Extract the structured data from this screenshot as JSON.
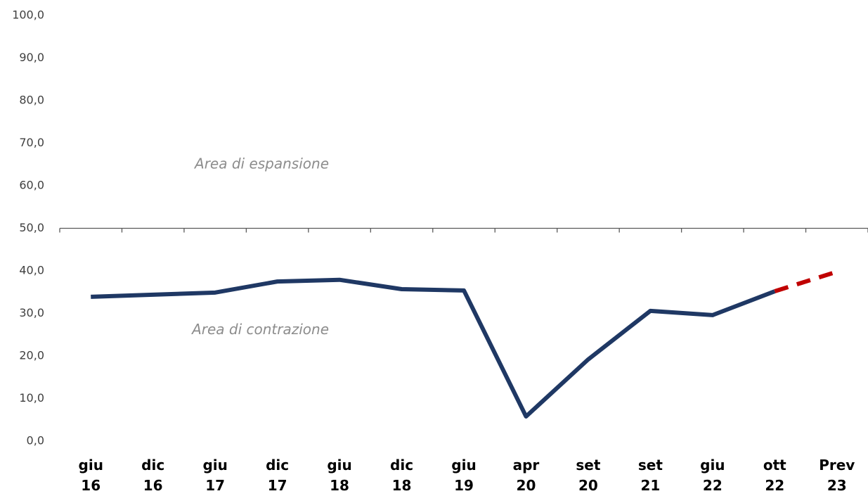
{
  "chart_data": {
    "type": "line",
    "categories": [
      "giu 16",
      "dic 16",
      "giu 17",
      "dic 17",
      "giu 18",
      "dic 18",
      "giu 19",
      "apr 20",
      "set 20",
      "set 21",
      "giu 22",
      "ott 22",
      "Prev 23"
    ],
    "series": [
      {
        "color": "#1f3864",
        "dashed": false,
        "values": [
          33.9,
          34.4,
          34.9,
          37.5,
          37.9,
          35.7,
          35.4,
          5.8,
          19.2,
          30.6,
          29.6,
          35.2,
          null
        ]
      },
      {
        "color": "#c00000",
        "dashed": true,
        "values": [
          null,
          null,
          null,
          null,
          null,
          null,
          null,
          null,
          null,
          null,
          null,
          35.2,
          39.8
        ]
      }
    ],
    "ylim": [
      0,
      100
    ],
    "yticks": [
      {
        "value": 0,
        "label": "0,0"
      },
      {
        "value": 10,
        "label": "10,0"
      },
      {
        "value": 20,
        "label": "20,0"
      },
      {
        "value": 30,
        "label": "30,0"
      },
      {
        "value": 40,
        "label": "40,0"
      },
      {
        "value": 50,
        "label": "50,0"
      },
      {
        "value": 60,
        "label": "60,0"
      },
      {
        "value": 70,
        "label": "70,0"
      },
      {
        "value": 80,
        "label": "80,0"
      },
      {
        "value": 90,
        "label": "90,0"
      },
      {
        "value": 100,
        "label": "100,0"
      }
    ],
    "x_axis_crosses": 50,
    "grid": false,
    "annotations": [
      {
        "text": "Area di espansione",
        "value": 65
      },
      {
        "text": "Area di contrazione",
        "value": 26
      }
    ]
  }
}
